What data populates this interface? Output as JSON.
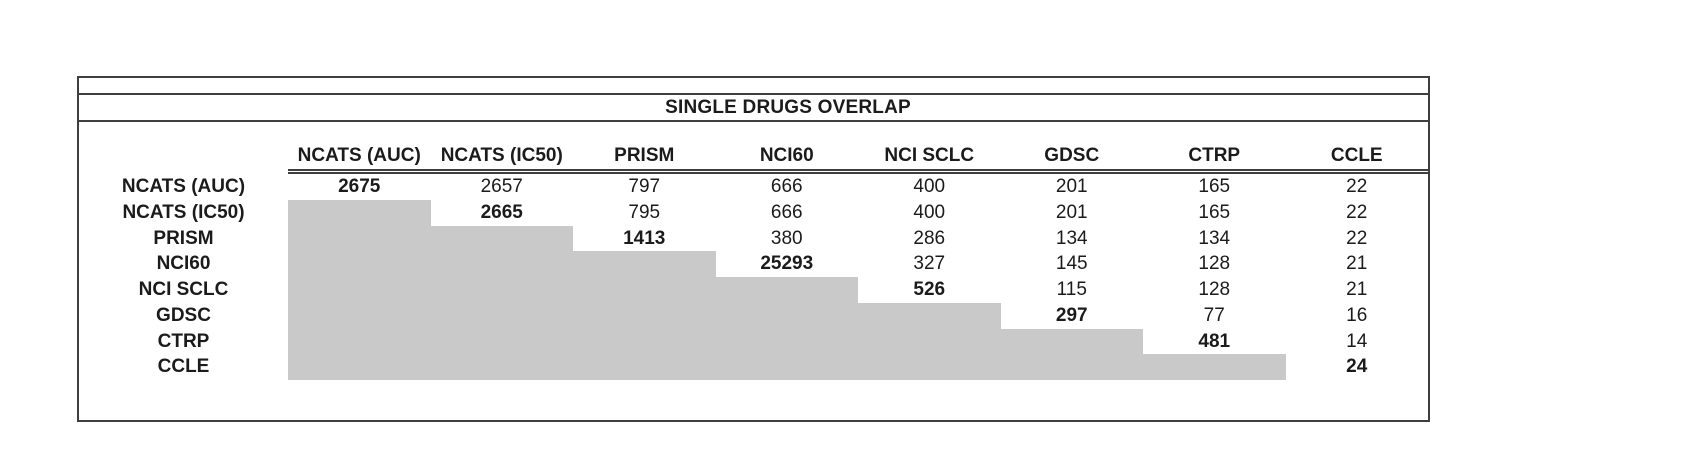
{
  "title": "SINGLE DRUGS OVERLAP",
  "colors": {
    "shade": "#c9c9c9",
    "border": "#3f3f3f",
    "text": "#1b1b1b",
    "background": "#ffffff"
  },
  "chart_data": {
    "type": "table",
    "title": "SINGLE DRUGS OVERLAP",
    "layout": "upper-triangular overlap matrix; cells below the diagonal are shaded gray and empty; diagonal values are bold",
    "columns": [
      "NCATS (AUC)",
      "NCATS (IC50)",
      "PRISM",
      "NCI60",
      "NCI SCLC",
      "GDSC",
      "CTRP",
      "CCLE"
    ],
    "row_labels": [
      "NCATS (AUC)",
      "NCATS (IC50)",
      "PRISM",
      "NCI60",
      "NCI SCLC",
      "GDSC",
      "CTRP",
      "CCLE"
    ],
    "values": [
      [
        2675,
        2657,
        797,
        666,
        400,
        201,
        165,
        22
      ],
      [
        null,
        2665,
        795,
        666,
        400,
        201,
        165,
        22
      ],
      [
        null,
        null,
        1413,
        380,
        286,
        134,
        134,
        22
      ],
      [
        null,
        null,
        null,
        25293,
        327,
        145,
        128,
        21
      ],
      [
        null,
        null,
        null,
        null,
        526,
        115,
        128,
        21
      ],
      [
        null,
        null,
        null,
        null,
        null,
        297,
        77,
        16
      ],
      [
        null,
        null,
        null,
        null,
        null,
        null,
        481,
        14
      ],
      [
        null,
        null,
        null,
        null,
        null,
        null,
        null,
        24
      ]
    ],
    "diagonal": [
      2675,
      2665,
      1413,
      25293,
      526,
      297,
      481,
      24
    ]
  }
}
